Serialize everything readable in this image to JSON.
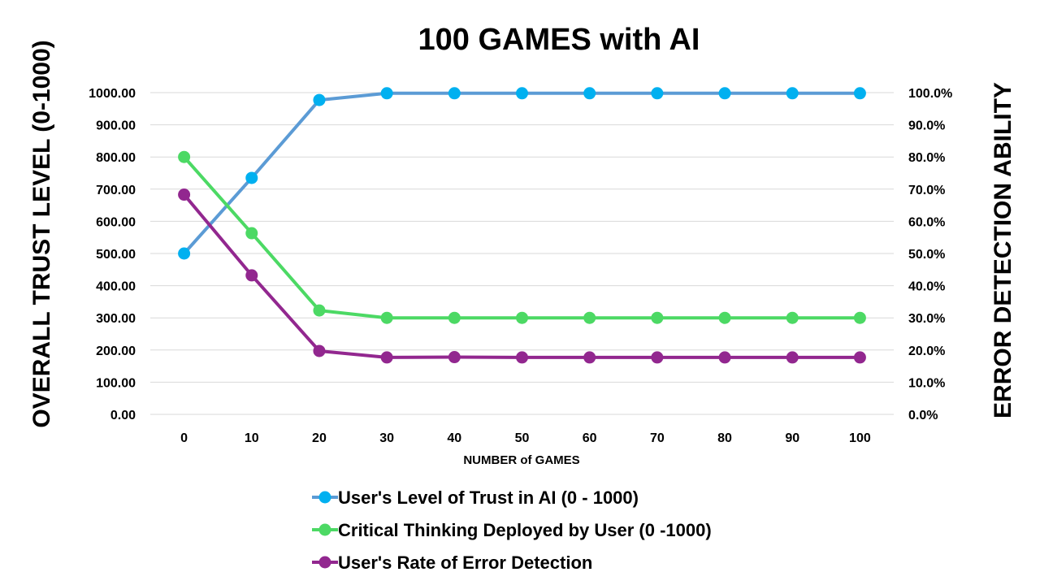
{
  "chart_data": {
    "type": "line",
    "title": "100 GAMES with AI",
    "xlabel": "NUMBER of GAMES",
    "ylabel": "OVERALL TRUST LEVEL (0-1000)",
    "y2label": "ERROR DETECTION ABILITY",
    "categories": [
      "0",
      "10",
      "20",
      "30",
      "40",
      "50",
      "60",
      "70",
      "80",
      "90",
      "100"
    ],
    "ylim": [
      0,
      1000
    ],
    "y2lim": [
      0,
      1
    ],
    "yticks": [
      "0.00",
      "100.00",
      "200.00",
      "300.00",
      "400.00",
      "500.00",
      "600.00",
      "700.00",
      "800.00",
      "900.00",
      "1000.00"
    ],
    "y2ticks": [
      "0.0%",
      "10.0%",
      "20.0%",
      "30.0%",
      "40.0%",
      "50.0%",
      "60.0%",
      "70.0%",
      "80.0%",
      "90.0%",
      "100.0%"
    ],
    "grid": true,
    "legend_position": "bottom",
    "series": [
      {
        "name": "User's Level of Trust in AI (0 - 1000)",
        "axis": "left",
        "line_color": "#5b9bd5",
        "marker_color": "#00b0f0",
        "values": [
          500,
          735,
          977,
          998,
          998,
          998,
          998,
          998,
          998,
          998,
          998
        ]
      },
      {
        "name": "Critical Thinking Deployed by User (0 -1000)",
        "axis": "left",
        "line_color": "#4cd964",
        "marker_color": "#4cd964",
        "values": [
          800,
          563,
          323,
          300,
          300,
          300,
          300,
          300,
          300,
          300,
          300
        ]
      },
      {
        "name": "User's Rate of Error Detection",
        "axis": "right",
        "line_color": "#92278f",
        "marker_color": "#92278f",
        "values": [
          0.683,
          0.432,
          0.197,
          0.177,
          0.178,
          0.177,
          0.177,
          0.177,
          0.177,
          0.177,
          0.177
        ]
      }
    ]
  }
}
